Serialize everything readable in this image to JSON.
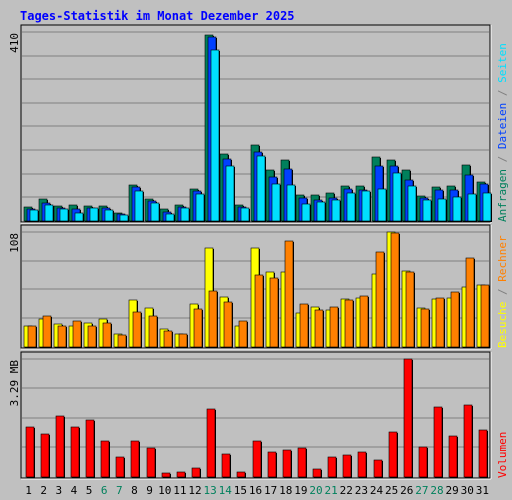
{
  "colors": {
    "background": "#c0c0c0",
    "grid": "#808080",
    "title": "#0000ff",
    "hits": "#00805c",
    "files": "#0040ff",
    "pages": "#00e0ff",
    "visits": "#ffff00",
    "sites": "#ff8000",
    "kbytes": "#ff0000",
    "weekday": "#000000",
    "weekend": "#00805c"
  },
  "chart_data": {
    "type": "bar",
    "title": "Tages-Statistik im Monat Dezember 2025",
    "categories": [
      "1",
      "2",
      "3",
      "4",
      "5",
      "6",
      "7",
      "8",
      "9",
      "10",
      "11",
      "12",
      "13",
      "14",
      "15",
      "16",
      "17",
      "18",
      "19",
      "20",
      "21",
      "22",
      "23",
      "24",
      "25",
      "26",
      "27",
      "28",
      "29",
      "30",
      "31"
    ],
    "weekend_days": [
      "6",
      "7",
      "13",
      "14",
      "20",
      "21",
      "27",
      "28"
    ],
    "grid": true,
    "panels": [
      {
        "key": "top",
        "ymax_label": "410",
        "ylim": [
          0,
          410
        ],
        "right_labels": [
          {
            "text": "Anfragen",
            "color_key": "hits"
          },
          {
            "text": " / ",
            "color_key": "grid"
          },
          {
            "text": "Dateien",
            "color_key": "files"
          },
          {
            "text": " / ",
            "color_key": "grid"
          },
          {
            "text": "Seiten",
            "color_key": "pages"
          }
        ],
        "series": [
          {
            "name": "Anfragen",
            "color_key": "hits",
            "values": [
              30,
              48,
              33,
              35,
              33,
              33,
              18,
              78,
              47,
              25,
              35,
              69,
              404,
              145,
              35,
              164,
              110,
              133,
              57,
              56,
              60,
              77,
              76,
              138,
              133,
              110,
              55,
              73,
              75,
              121,
              85
            ]
          },
          {
            "name": "Dateien",
            "color_key": "files",
            "values": [
              25,
              40,
              28,
              25,
              28,
              28,
              15,
              73,
              43,
              20,
              30,
              65,
              400,
              135,
              30,
              150,
              95,
              112,
              50,
              45,
              50,
              70,
              68,
              120,
              120,
              90,
              50,
              68,
              67,
              100,
              80
            ]
          },
          {
            "name": "Seiten",
            "color_key": "pages",
            "values": [
              24,
              35,
              25,
              18,
              28,
              24,
              12,
              65,
              38,
              16,
              28,
              58,
              370,
              120,
              28,
              140,
              80,
              78,
              36,
              42,
              45,
              60,
              65,
              70,
              105,
              75,
              46,
              48,
              51,
              58,
              61
            ]
          }
        ]
      },
      {
        "key": "middle",
        "ymax_label": "108",
        "ylim": [
          0,
          108
        ],
        "right_labels": [
          {
            "text": "Besuche",
            "color_key": "visits"
          },
          {
            "text": " / ",
            "color_key": "grid"
          },
          {
            "text": "Rechner",
            "color_key": "sites"
          }
        ],
        "series": [
          {
            "name": "Besuche",
            "color_key": "visits",
            "values": [
              20,
              26,
              22,
              20,
              23,
              26,
              12,
              44,
              37,
              17,
              12,
              40,
              93,
              47,
              20,
              93,
              70,
              70,
              32,
              38,
              35,
              45,
              46,
              69,
              108,
              71,
              37,
              45,
              46,
              56,
              58
            ]
          },
          {
            "name": "Rechner",
            "color_key": "sites",
            "values": [
              20,
              29,
              20,
              24,
              20,
              23,
              11,
              33,
              29,
              15,
              12,
              36,
              53,
              42,
              24,
              68,
              65,
              100,
              40,
              35,
              38,
              44,
              48,
              89,
              107,
              70,
              36,
              46,
              52,
              84,
              58
            ]
          }
        ]
      },
      {
        "key": "bottom",
        "ymax_label": "3.29 MB",
        "ylim": [
          0,
          3.29
        ],
        "right_labels": [
          {
            "text": "Volumen",
            "color_key": "kbytes"
          }
        ],
        "series": [
          {
            "name": "Volumen",
            "color_key": "kbytes",
            "values": [
              1.4,
              1.2,
              1.7,
              1.4,
              1.6,
              1.0,
              0.55,
              1.0,
              0.8,
              0.12,
              0.15,
              0.25,
              1.9,
              0.65,
              0.15,
              1.0,
              0.7,
              0.75,
              0.8,
              0.22,
              0.55,
              0.6,
              0.7,
              0.48,
              1.25,
              3.29,
              0.85,
              1.95,
              1.15,
              2.0,
              1.3
            ]
          }
        ]
      }
    ]
  }
}
